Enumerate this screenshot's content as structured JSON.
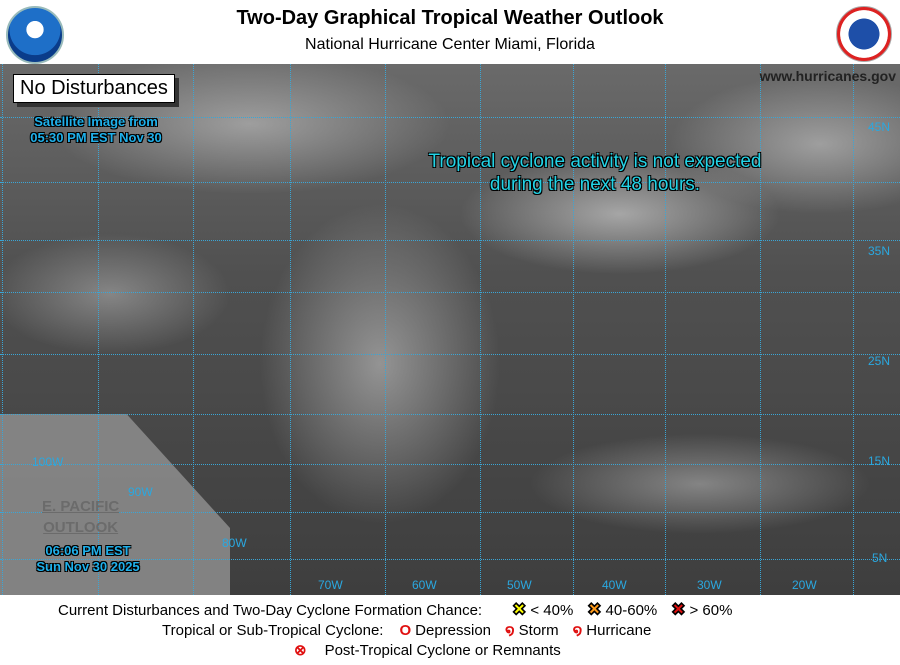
{
  "header": {
    "title": "Two-Day Graphical Tropical Weather Outlook",
    "subtitle": "National Hurricane Center  Miami, Florida",
    "logo_left": "NOAA",
    "logo_right": "NATIONAL WEATHER SERVICE"
  },
  "map": {
    "status_box": "No Disturbances",
    "satellite_line1": "Satellite Image from",
    "satellite_line2": "05:30 PM EST Nov 30",
    "website": "www.hurricanes.gov",
    "message_line1": "Tropical cyclone activity is not expected",
    "message_line2": "during the next 48 hours.",
    "epac_line1": "E. PACIFIC",
    "epac_line2": "OUTLOOK",
    "issued_line1": "06:06 PM EST",
    "issued_line2": "Sun Nov 30 2025",
    "lat_labels": [
      "45N",
      "35N",
      "25N",
      "15N",
      "5N"
    ],
    "lon_labels": [
      "100W",
      "90W",
      "80W",
      "70W",
      "60W",
      "50W",
      "40W",
      "30W",
      "20W"
    ],
    "grid_color": "#3aa6d6"
  },
  "legend": {
    "formation_label": "Current Disturbances and Two-Day Cyclone Formation Chance:",
    "low": "< 40%",
    "medium": "40-60%",
    "high": "> 60%",
    "low_color": "#ffff00",
    "medium_color": "#ff9a1a",
    "high_color": "#e01010",
    "cyclone_label": "Tropical or Sub-Tropical Cyclone:",
    "depression": "Depression",
    "storm": "Storm",
    "hurricane": "Hurricane",
    "post_tropical": "Post-Tropical Cyclone or Remnants"
  }
}
